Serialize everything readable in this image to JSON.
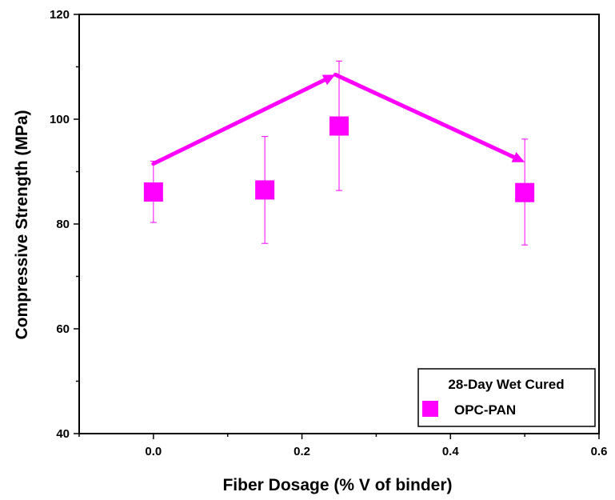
{
  "chart_data": {
    "type": "scatter",
    "xlabel": "Fiber Dosage (% V of binder)",
    "ylabel": "Compressive Strength (MPa)",
    "xlim": [
      -0.1,
      0.6
    ],
    "ylim": [
      40,
      120
    ],
    "xticks": [
      0.0,
      0.2,
      0.4,
      0.6
    ],
    "xtick_labels": [
      "0.0",
      "0.2",
      "0.4",
      "0.6"
    ],
    "yticks": [
      40,
      60,
      80,
      100,
      120
    ],
    "ytick_labels": [
      "40",
      "60",
      "80",
      "100",
      "120"
    ],
    "grid": false,
    "legend": {
      "title": "28-Day Wet Cured",
      "position": "bottom-right",
      "entries": [
        "OPC-PAN"
      ]
    },
    "series": [
      {
        "name": "OPC-PAN",
        "marker": "square",
        "color": "#ff00ff",
        "points": [
          {
            "x": 0.0,
            "y": 86.1,
            "error_low": 80.3,
            "error_high": 92.0
          },
          {
            "x": 0.15,
            "y": 86.5,
            "error_low": 76.3,
            "error_high": 96.7
          },
          {
            "x": 0.25,
            "y": 98.7,
            "error_low": 86.4,
            "error_high": 111.1
          },
          {
            "x": 0.5,
            "y": 86.0,
            "error_low": 76.0,
            "error_high": 96.2
          }
        ]
      }
    ],
    "annotations": [
      {
        "type": "arrow",
        "color": "#ff00ff",
        "from": [
          0.0,
          91.5
        ],
        "to": [
          0.245,
          108.5
        ]
      },
      {
        "type": "arrow",
        "color": "#ff00ff",
        "from": [
          0.245,
          108.5
        ],
        "to": [
          0.5,
          91.8
        ]
      }
    ]
  }
}
